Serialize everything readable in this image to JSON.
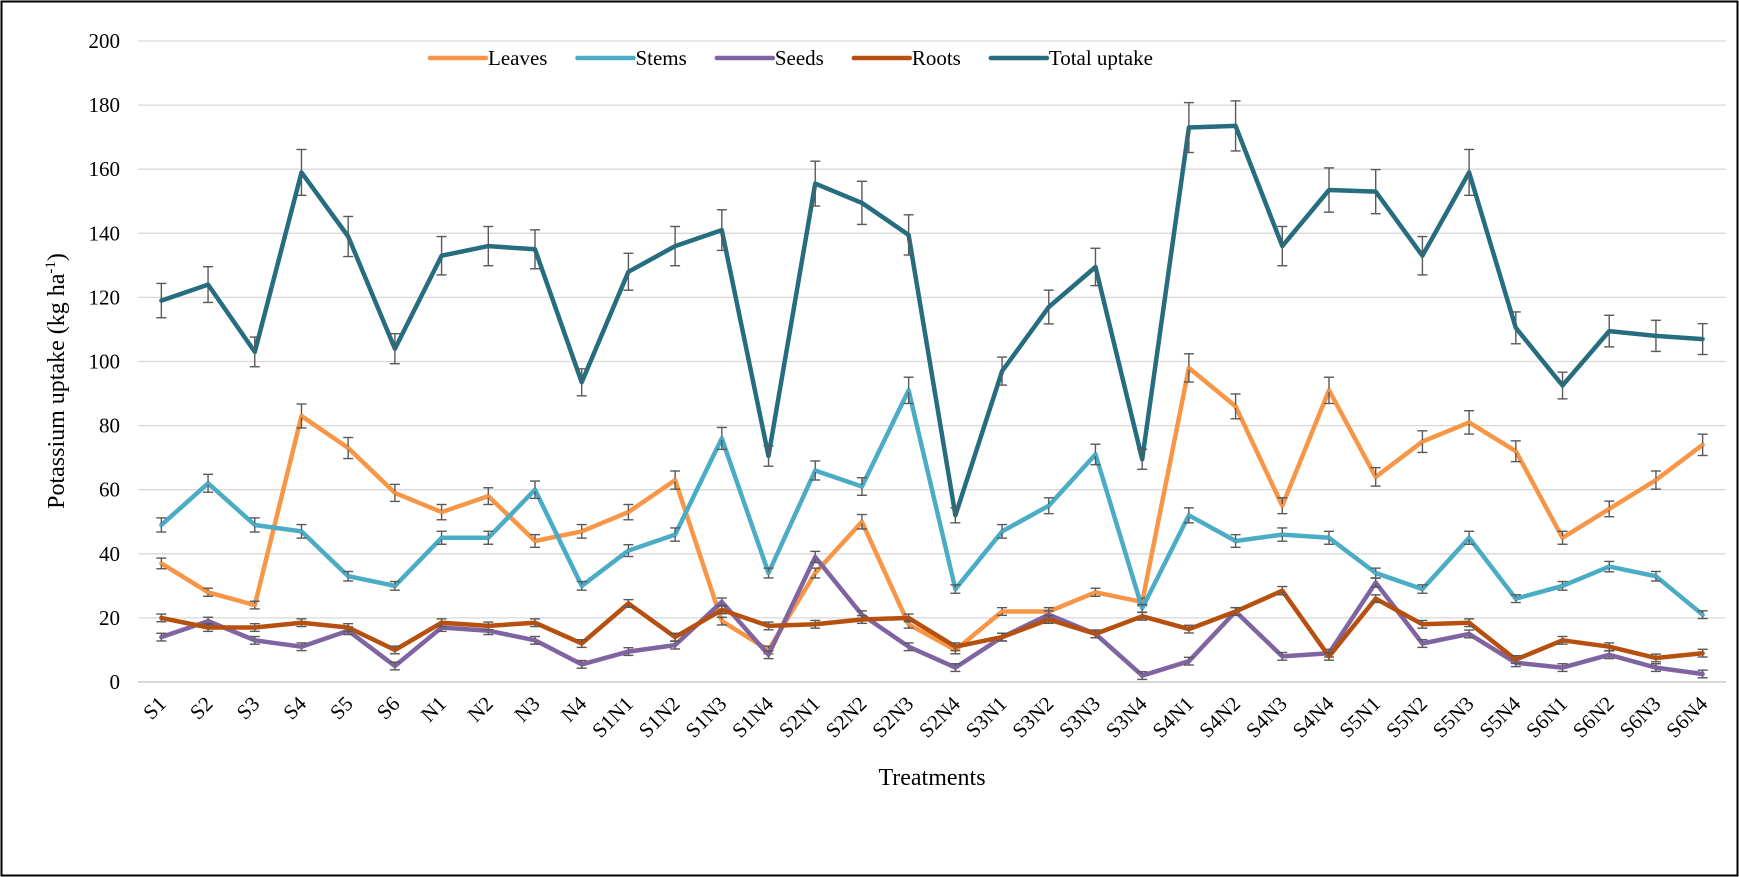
{
  "chart_data": {
    "type": "line",
    "title": "",
    "xlabel": "Treatments",
    "ylabel": "Potassium uptake (kg ha",
    "ylabel_sup": "-1",
    "ylabel_tail": ")",
    "ylim": [
      0,
      200
    ],
    "yticks": [
      0,
      20,
      40,
      60,
      80,
      100,
      120,
      140,
      160,
      180,
      200
    ],
    "grid": "horizontal",
    "legend_position": "top",
    "error_bars": true,
    "categories": [
      "S1",
      "S2",
      "S3",
      "S4",
      "S5",
      "S6",
      "N1",
      "N2",
      "N3",
      "N4",
      "S1N1",
      "S1N2",
      "S1N3",
      "S1N4",
      "S2N1",
      "S2N2",
      "S2N3",
      "S2N4",
      "S3N1",
      "S3N2",
      "S3N3",
      "S3N4",
      "S4N1",
      "S4N2",
      "S4N3",
      "S4N4",
      "S5N1",
      "S5N2",
      "S5N3",
      "S5N4",
      "S6N1",
      "S6N2",
      "S6N3",
      "S6N4"
    ],
    "series": [
      {
        "name": "Leaves",
        "color": "#F79646",
        "values": [
          37,
          28,
          24,
          83,
          73,
          59,
          53,
          58,
          44,
          47,
          53,
          63,
          19,
          10,
          34,
          50,
          18,
          10,
          22,
          22,
          28,
          25,
          98,
          86,
          55,
          91,
          64,
          75,
          81,
          72,
          45,
          54,
          63,
          74
        ]
      },
      {
        "name": "Stems",
        "color": "#4BACC6",
        "values": [
          49,
          62,
          49,
          47,
          33,
          30,
          45,
          45,
          60,
          30,
          41,
          46,
          76,
          34,
          66,
          61,
          91,
          29,
          47,
          55,
          71,
          23,
          52,
          44,
          46,
          45,
          34,
          29,
          45,
          26,
          30,
          36,
          33,
          21
        ]
      },
      {
        "name": "Seeds",
        "color": "#8064A2",
        "values": [
          14,
          19,
          13,
          11,
          16,
          5,
          17,
          16,
          13,
          5.5,
          9.5,
          11.5,
          25,
          8.5,
          39,
          21,
          11,
          4.5,
          14,
          21,
          15,
          2,
          6.5,
          22,
          8,
          9,
          31,
          12,
          15,
          6,
          4.5,
          8.5,
          4.5,
          2.5
        ]
      },
      {
        "name": "Roots",
        "color": "#B7500F",
        "values": [
          20,
          17,
          17,
          18.5,
          17,
          10,
          18.5,
          17.5,
          18.5,
          12,
          24.5,
          14,
          22.5,
          17.5,
          18,
          19.5,
          20,
          11,
          14,
          19.5,
          15,
          20.5,
          16.5,
          22,
          28.5,
          8,
          26,
          18,
          18.5,
          7,
          13,
          11,
          7.5,
          9
        ]
      },
      {
        "name": "Total uptake",
        "color": "#256D7F",
        "values": [
          119,
          124,
          103,
          159,
          139,
          104,
          133,
          136,
          135,
          93.5,
          128,
          136,
          141,
          70.5,
          155.5,
          149.5,
          139.5,
          52,
          97,
          117,
          129.5,
          69.5,
          173,
          173.5,
          136,
          153.5,
          153,
          133,
          159,
          110.5,
          92.5,
          109.5,
          108,
          107
        ]
      }
    ]
  }
}
